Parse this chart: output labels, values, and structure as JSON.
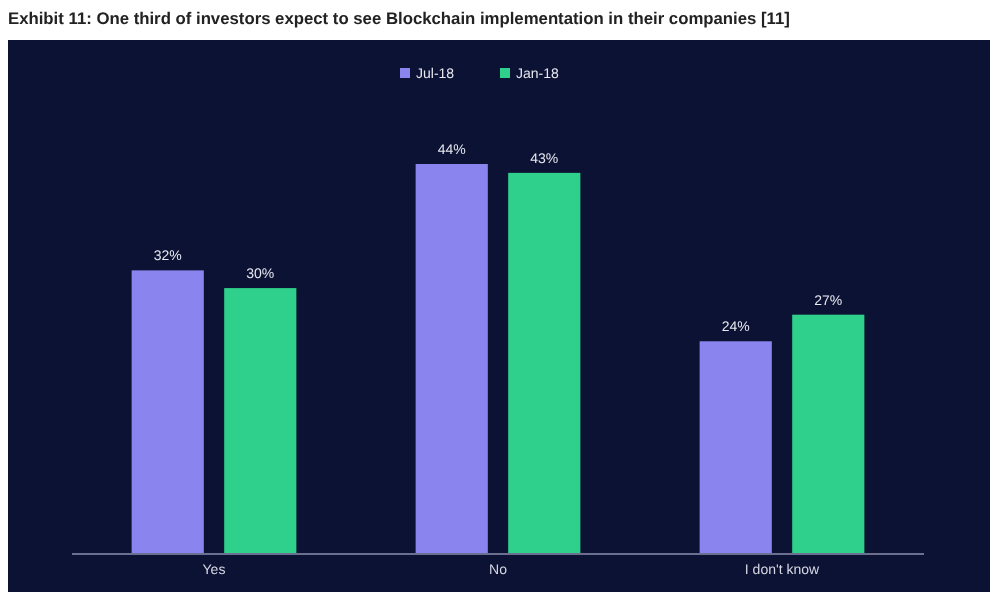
{
  "chart_data": {
    "type": "bar",
    "title": "Exhibit 11: One third of investors expect to see Blockchain implementation in their companies [11]",
    "categories": [
      "Yes",
      "No",
      "I don't know"
    ],
    "series": [
      {
        "name": "Jul-18",
        "color": "#8a84ee",
        "values": [
          32,
          44,
          24
        ],
        "value_labels": [
          "32%",
          "44%",
          "24%"
        ]
      },
      {
        "name": "Jan-18",
        "color": "#2fcf8c",
        "values": [
          30,
          43,
          27
        ],
        "value_labels": [
          "30%",
          "43%",
          "27%"
        ]
      }
    ],
    "legend": "top"
  }
}
